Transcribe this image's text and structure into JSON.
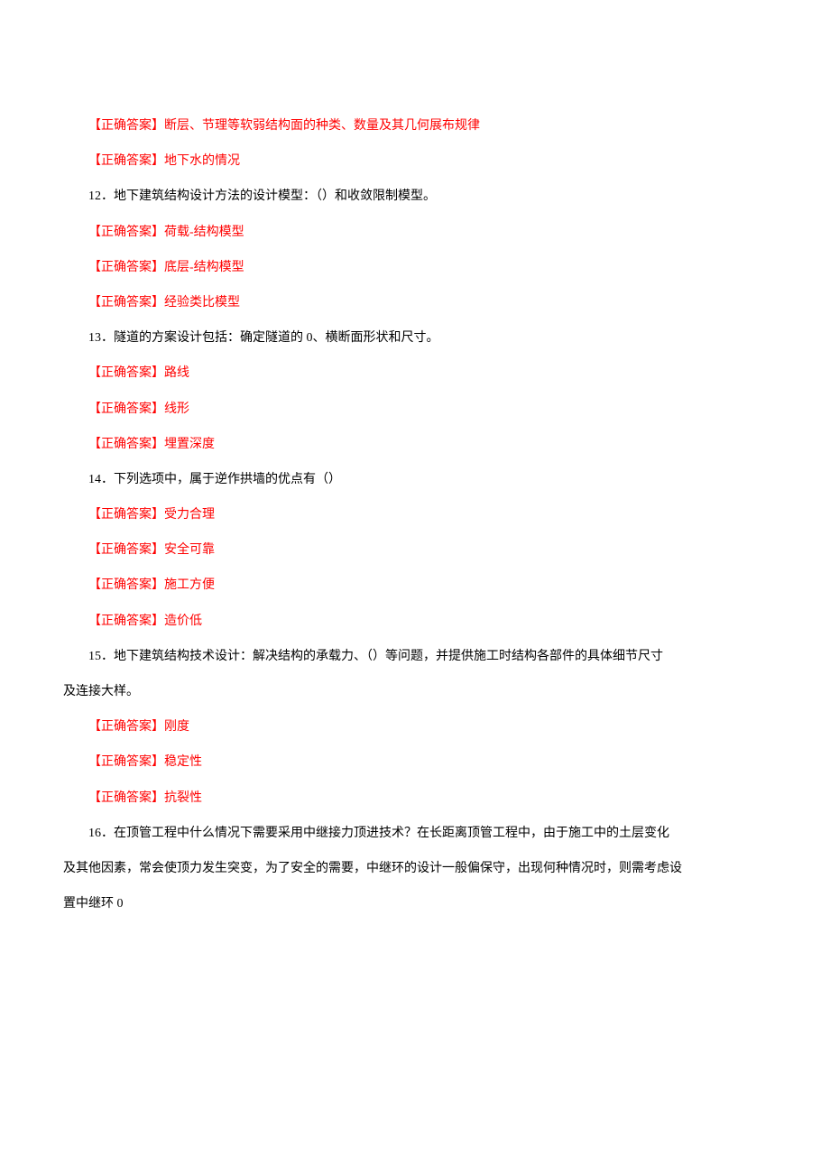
{
  "colors": {
    "text_black": "#000000",
    "text_red": "#ff0000",
    "background": "#ffffff"
  },
  "typography": {
    "font_family": "SimSun",
    "font_size_pt": 10.5,
    "line_height": 2.8
  },
  "answer_label": "【正确答案】",
  "items": [
    {
      "type": "answer",
      "text": "断层、节理等软弱结构面的种类、数量及其几何展布规律"
    },
    {
      "type": "answer",
      "text": "地下水的情况"
    },
    {
      "type": "question",
      "num": "12",
      "text": "．地下建筑结构设计方法的设计模型：（）和收敛限制模型。"
    },
    {
      "type": "answer",
      "text": "荷载-结构模型"
    },
    {
      "type": "answer",
      "text": "底层-结构模型"
    },
    {
      "type": "answer",
      "text": "经验类比模型"
    },
    {
      "type": "question",
      "num": "13",
      "text": "．隧道的方案设计包括：确定隧道的 0、横断面形状和尺寸。"
    },
    {
      "type": "answer",
      "text": "路线"
    },
    {
      "type": "answer",
      "text": "线形"
    },
    {
      "type": "answer",
      "text": "埋置深度"
    },
    {
      "type": "question",
      "num": "14",
      "text": "．下列选项中，属于逆作拱墙的优点有（）"
    },
    {
      "type": "answer",
      "text": "受力合理"
    },
    {
      "type": "answer",
      "text": "安全可靠"
    },
    {
      "type": "answer",
      "text": "施工方便"
    },
    {
      "type": "answer",
      "text": "造价低"
    },
    {
      "type": "question_multi",
      "num": "15",
      "lines": [
        "．地下建筑结构技术设计：解决结构的承载力、（）等问题，并提供施工时结构各部件的具体细节尺寸",
        "及连接大样。"
      ]
    },
    {
      "type": "answer",
      "text": "刚度"
    },
    {
      "type": "answer",
      "text": "稳定性"
    },
    {
      "type": "answer",
      "text": "抗裂性"
    },
    {
      "type": "question_multi",
      "num": "16",
      "lines": [
        "．在顶管工程中什么情况下需要采用中继接力顶进技术？在长距离顶管工程中，由于施工中的土层变化",
        "及其他因素，常会使顶力发生突变，为了安全的需要，中继环的设计一般偏保守，出现何种情况时，则需考虑设",
        "置中继环 0"
      ]
    }
  ]
}
